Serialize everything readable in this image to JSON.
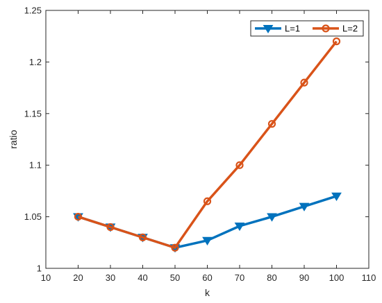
{
  "chart_data": {
    "type": "line",
    "title": "",
    "xlabel": "k",
    "ylabel": "ratio",
    "xlim": [
      10,
      110
    ],
    "ylim": [
      1,
      1.25
    ],
    "xticks": [
      "10",
      "20",
      "30",
      "40",
      "50",
      "60",
      "70",
      "80",
      "90",
      "100",
      "110"
    ],
    "yticks": [
      "1",
      "1.05",
      "1.1",
      "1.15",
      "1.2",
      "1.25"
    ],
    "grid": false,
    "legend_position": "top-right",
    "series": [
      {
        "name": "L=1",
        "color": "#0072BD",
        "marker": "triangle-down",
        "x": [
          20,
          30,
          40,
          50,
          60,
          70,
          80,
          90,
          100
        ],
        "y": [
          1.05,
          1.04,
          1.03,
          1.02,
          1.027,
          1.041,
          1.05,
          1.06,
          1.07
        ]
      },
      {
        "name": "L=2",
        "color": "#D95319",
        "marker": "circle",
        "x": [
          20,
          30,
          40,
          50,
          60,
          70,
          80,
          90,
          100
        ],
        "y": [
          1.05,
          1.04,
          1.03,
          1.02,
          1.065,
          1.1,
          1.14,
          1.18,
          1.22
        ]
      }
    ]
  }
}
